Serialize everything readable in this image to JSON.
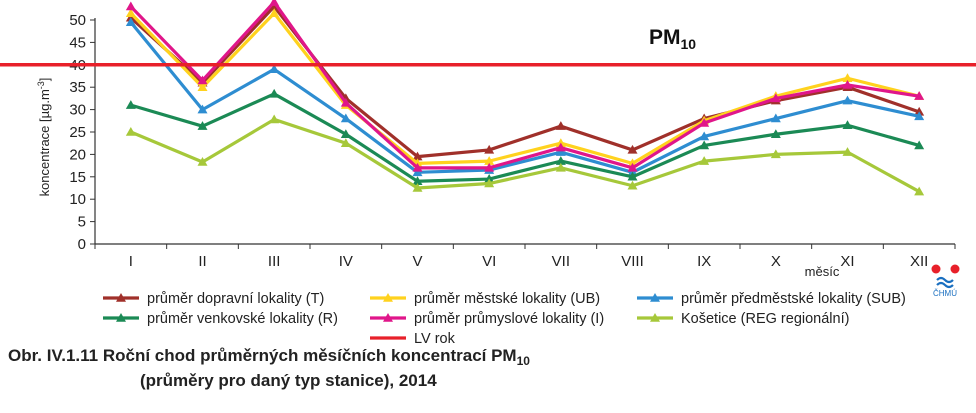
{
  "chart_data": {
    "type": "line",
    "title": "PM",
    "title_sub": "10",
    "ylabel": "koncentrace [µg.m",
    "ylabel_sup": "-3",
    "ylabel_end": "]",
    "xlabel": "měsíc",
    "ylim": [
      0,
      50
    ],
    "yticks": [
      0,
      5,
      10,
      15,
      20,
      25,
      30,
      35,
      40,
      45,
      50
    ],
    "categories": [
      "I",
      "II",
      "III",
      "IV",
      "V",
      "VI",
      "VII",
      "VIII",
      "IX",
      "X",
      "XI",
      "XII"
    ],
    "grid": false,
    "legend_position": "bottom",
    "reference_line": {
      "name": "LV rok",
      "value": 40,
      "color": "#e8202a"
    },
    "series": [
      {
        "name": "průměr dopravní lokality (T)",
        "color": "#a0302a",
        "values": [
          50.5,
          36,
          53,
          32.5,
          19.5,
          21,
          26.3,
          21,
          28,
          32,
          35,
          29.5
        ]
      },
      {
        "name": "průměr městské lokality (UB)",
        "color": "#ffd21e",
        "values": [
          51.5,
          35,
          51.5,
          31,
          18,
          18.5,
          22.5,
          18,
          27.5,
          33,
          37,
          33
        ]
      },
      {
        "name": "průměr předměstské lokality (SUB)",
        "color": "#2e8dd1",
        "values": [
          49.5,
          30,
          39,
          28,
          16,
          16.5,
          20.5,
          16,
          24,
          28,
          32,
          28.5
        ]
      },
      {
        "name": "průměr venkovské lokality (R)",
        "color": "#1b8a55",
        "values": [
          31,
          26.3,
          33.5,
          24.5,
          14,
          14.5,
          18.5,
          15,
          22,
          24.5,
          26.5,
          22
        ]
      },
      {
        "name": "průměr průmyslové lokality (I)",
        "color": "#e0168a",
        "values": [
          53,
          36.5,
          54,
          31.5,
          17,
          17,
          21.5,
          17,
          27,
          32.5,
          35.5,
          33
        ]
      },
      {
        "name": "Košetice (REG regionální)",
        "color": "#a6c83a",
        "values": [
          25,
          18.3,
          27.8,
          22.5,
          12.5,
          13.5,
          17,
          13,
          18.5,
          20,
          20.5,
          11.7
        ]
      }
    ]
  },
  "caption": {
    "line1_a": "Obr. IV.1.11  Roční chod průměrných měsíčních koncentrací PM",
    "line1_sub": "10",
    "line2": "(průměry pro daný typ stanice), 2014"
  },
  "logo": {
    "text": "ČHMÚ"
  }
}
